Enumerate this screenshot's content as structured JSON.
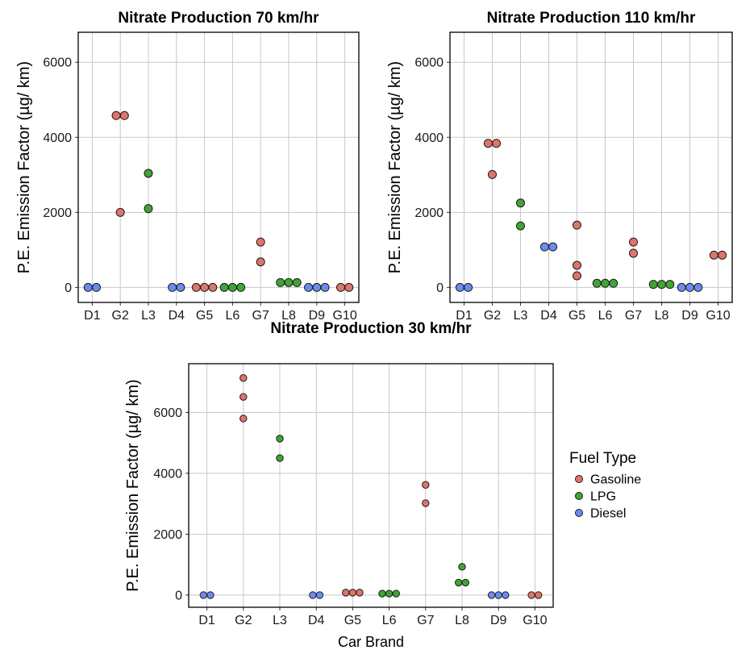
{
  "chart_data": [
    {
      "type": "scatter",
      "title": "Nitrate Production 70 km/hr",
      "xlabel": "",
      "ylabel": "P.E. Emission Factor (µg/ km)",
      "categories": [
        "D1",
        "G2",
        "L3",
        "D4",
        "G5",
        "L6",
        "G7",
        "L8",
        "D9",
        "G10"
      ],
      "ylim": [
        -400,
        6800
      ],
      "yticks": [
        0,
        2000,
        4000,
        6000
      ],
      "grid": true,
      "points": [
        {
          "x": "D1",
          "y": 0,
          "fuel": "Diesel"
        },
        {
          "x": "D1",
          "y": 0,
          "fuel": "Diesel"
        },
        {
          "x": "G2",
          "y": 4580,
          "fuel": "Gasoline"
        },
        {
          "x": "G2",
          "y": 4580,
          "fuel": "Gasoline"
        },
        {
          "x": "G2",
          "y": 2000,
          "fuel": "Gasoline"
        },
        {
          "x": "L3",
          "y": 3040,
          "fuel": "LPG"
        },
        {
          "x": "L3",
          "y": 2100,
          "fuel": "LPG"
        },
        {
          "x": "D4",
          "y": 0,
          "fuel": "Diesel"
        },
        {
          "x": "D4",
          "y": 0,
          "fuel": "Diesel"
        },
        {
          "x": "G5",
          "y": 0,
          "fuel": "Gasoline"
        },
        {
          "x": "G5",
          "y": 0,
          "fuel": "Gasoline"
        },
        {
          "x": "G5",
          "y": 0,
          "fuel": "Gasoline"
        },
        {
          "x": "L6",
          "y": 0,
          "fuel": "LPG"
        },
        {
          "x": "L6",
          "y": 0,
          "fuel": "LPG"
        },
        {
          "x": "L6",
          "y": 0,
          "fuel": "LPG"
        },
        {
          "x": "G7",
          "y": 1210,
          "fuel": "Gasoline"
        },
        {
          "x": "G7",
          "y": 680,
          "fuel": "Gasoline"
        },
        {
          "x": "L8",
          "y": 130,
          "fuel": "LPG"
        },
        {
          "x": "L8",
          "y": 130,
          "fuel": "LPG"
        },
        {
          "x": "L8",
          "y": 130,
          "fuel": "LPG"
        },
        {
          "x": "D9",
          "y": 0,
          "fuel": "Diesel"
        },
        {
          "x": "D9",
          "y": 0,
          "fuel": "Diesel"
        },
        {
          "x": "D9",
          "y": 0,
          "fuel": "Diesel"
        },
        {
          "x": "G10",
          "y": 0,
          "fuel": "Gasoline"
        },
        {
          "x": "G10",
          "y": 0,
          "fuel": "Gasoline"
        }
      ]
    },
    {
      "type": "scatter",
      "title": "Nitrate Production 110 km/hr",
      "xlabel": "",
      "ylabel": "P.E. Emission Factor (µg/ km)",
      "categories": [
        "D1",
        "G2",
        "L3",
        "D4",
        "G5",
        "L6",
        "G7",
        "L8",
        "D9",
        "G10"
      ],
      "ylim": [
        -400,
        6800
      ],
      "yticks": [
        0,
        2000,
        4000,
        6000
      ],
      "grid": true,
      "points": [
        {
          "x": "D1",
          "y": 0,
          "fuel": "Diesel"
        },
        {
          "x": "D1",
          "y": 0,
          "fuel": "Diesel"
        },
        {
          "x": "G2",
          "y": 3840,
          "fuel": "Gasoline"
        },
        {
          "x": "G2",
          "y": 3840,
          "fuel": "Gasoline"
        },
        {
          "x": "G2",
          "y": 3010,
          "fuel": "Gasoline"
        },
        {
          "x": "L3",
          "y": 2250,
          "fuel": "LPG"
        },
        {
          "x": "L3",
          "y": 1640,
          "fuel": "LPG"
        },
        {
          "x": "D4",
          "y": 1080,
          "fuel": "Diesel"
        },
        {
          "x": "D4",
          "y": 1080,
          "fuel": "Diesel"
        },
        {
          "x": "G5",
          "y": 1660,
          "fuel": "Gasoline"
        },
        {
          "x": "G5",
          "y": 590,
          "fuel": "Gasoline"
        },
        {
          "x": "G5",
          "y": 310,
          "fuel": "Gasoline"
        },
        {
          "x": "L6",
          "y": 110,
          "fuel": "LPG"
        },
        {
          "x": "L6",
          "y": 110,
          "fuel": "LPG"
        },
        {
          "x": "L6",
          "y": 110,
          "fuel": "LPG"
        },
        {
          "x": "G7",
          "y": 1210,
          "fuel": "Gasoline"
        },
        {
          "x": "G7",
          "y": 910,
          "fuel": "Gasoline"
        },
        {
          "x": "L8",
          "y": 80,
          "fuel": "LPG"
        },
        {
          "x": "L8",
          "y": 80,
          "fuel": "LPG"
        },
        {
          "x": "L8",
          "y": 80,
          "fuel": "LPG"
        },
        {
          "x": "D9",
          "y": 0,
          "fuel": "Diesel"
        },
        {
          "x": "D9",
          "y": 0,
          "fuel": "Diesel"
        },
        {
          "x": "D9",
          "y": 0,
          "fuel": "Diesel"
        },
        {
          "x": "G10",
          "y": 860,
          "fuel": "Gasoline"
        },
        {
          "x": "G10",
          "y": 860,
          "fuel": "Gasoline"
        }
      ]
    },
    {
      "type": "scatter",
      "title": "Nitrate Production 30 km/hr",
      "xlabel": "Car Brand",
      "ylabel": "P.E. Emission Factor (µg/ km)",
      "categories": [
        "D1",
        "G2",
        "L3",
        "D4",
        "G5",
        "L6",
        "G7",
        "L8",
        "D9",
        "G10"
      ],
      "ylim": [
        -400,
        7600
      ],
      "yticks": [
        0,
        2000,
        4000,
        6000
      ],
      "grid": true,
      "points": [
        {
          "x": "D1",
          "y": 0,
          "fuel": "Diesel"
        },
        {
          "x": "D1",
          "y": 0,
          "fuel": "Diesel"
        },
        {
          "x": "G2",
          "y": 7130,
          "fuel": "Gasoline"
        },
        {
          "x": "G2",
          "y": 6510,
          "fuel": "Gasoline"
        },
        {
          "x": "G2",
          "y": 5800,
          "fuel": "Gasoline"
        },
        {
          "x": "L3",
          "y": 5140,
          "fuel": "LPG"
        },
        {
          "x": "L3",
          "y": 4500,
          "fuel": "LPG"
        },
        {
          "x": "D4",
          "y": 0,
          "fuel": "Diesel"
        },
        {
          "x": "D4",
          "y": 0,
          "fuel": "Diesel"
        },
        {
          "x": "G5",
          "y": 80,
          "fuel": "Gasoline"
        },
        {
          "x": "G5",
          "y": 80,
          "fuel": "Gasoline"
        },
        {
          "x": "G5",
          "y": 80,
          "fuel": "Gasoline"
        },
        {
          "x": "L6",
          "y": 50,
          "fuel": "LPG"
        },
        {
          "x": "L6",
          "y": 50,
          "fuel": "LPG"
        },
        {
          "x": "L6",
          "y": 50,
          "fuel": "LPG"
        },
        {
          "x": "G7",
          "y": 3620,
          "fuel": "Gasoline"
        },
        {
          "x": "G7",
          "y": 3020,
          "fuel": "Gasoline"
        },
        {
          "x": "L8",
          "y": 930,
          "fuel": "LPG"
        },
        {
          "x": "L8",
          "y": 410,
          "fuel": "LPG"
        },
        {
          "x": "L8",
          "y": 410,
          "fuel": "LPG"
        },
        {
          "x": "D9",
          "y": 0,
          "fuel": "Diesel"
        },
        {
          "x": "D9",
          "y": 0,
          "fuel": "Diesel"
        },
        {
          "x": "D9",
          "y": 0,
          "fuel": "Diesel"
        },
        {
          "x": "G10",
          "y": 0,
          "fuel": "Gasoline"
        },
        {
          "x": "G10",
          "y": 0,
          "fuel": "Gasoline"
        }
      ]
    }
  ],
  "legend": {
    "title": "Fuel Type",
    "placement": "right",
    "items": [
      {
        "label": "Gasoline",
        "color": "#E0746A"
      },
      {
        "label": "LPG",
        "color": "#3FA534"
      },
      {
        "label": "Diesel",
        "color": "#6A8CF0"
      }
    ]
  }
}
